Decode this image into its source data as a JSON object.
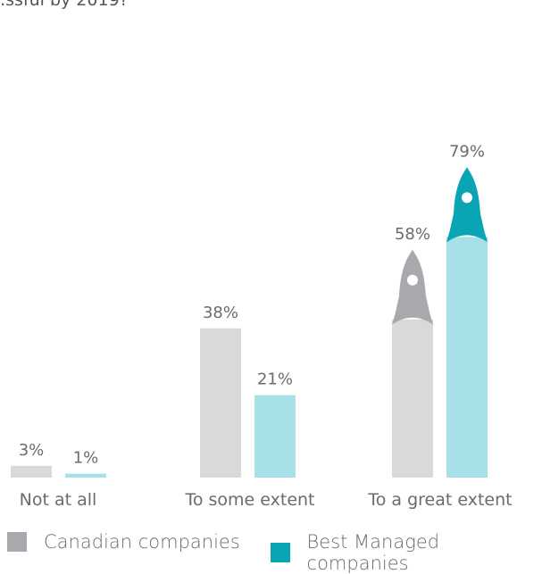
{
  "chart_data": {
    "type": "bar",
    "title": "",
    "xlabel": "",
    "ylabel": "",
    "categories": [
      "Not at all",
      "To some extent",
      "To a great extent"
    ],
    "series": [
      {
        "name": "Canadian companies",
        "values": [
          3,
          38,
          58
        ],
        "labels": [
          "3%",
          "38%",
          "58%"
        ],
        "color": "#d9d9d9",
        "rocket_color": "#a7a9ac"
      },
      {
        "name": "Best Managed companies",
        "values": [
          1,
          21,
          79
        ],
        "labels": [
          "1%",
          "21%",
          "79%"
        ],
        "color": "#a8e0e8",
        "rocket_color": "#0aa5b5"
      }
    ],
    "ylim": [
      0,
      85
    ],
    "grid": false,
    "legend": "bottom",
    "annotations": "rocket icons on tallest category bars"
  },
  "header": {
    "partial_text": "...ssful by 2019?"
  },
  "legend": {
    "items": [
      {
        "label": "Canadian companies",
        "color": "#a7a9ac"
      },
      {
        "label": "Best Managed companies",
        "color": "#0aa5b5"
      }
    ]
  }
}
